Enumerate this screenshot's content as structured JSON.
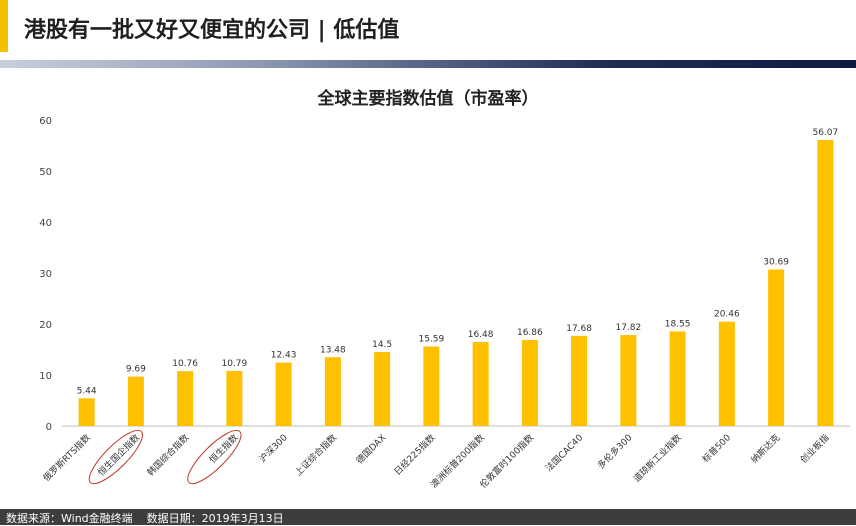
{
  "header": {
    "title": "港股有一批又好又便宜的公司 | 低估值",
    "accent_color": "#f5c000"
  },
  "footer": {
    "text": "数据来源：Wind金融终端    数据日期：2019年3月13日"
  },
  "chart_data": {
    "type": "bar",
    "title": "全球主要指数估值（市盈率）",
    "xlabel": "",
    "ylabel": "",
    "ylim": [
      0,
      60
    ],
    "yticks": [
      0,
      10,
      20,
      30,
      40,
      50,
      60
    ],
    "grid": false,
    "bar_color": "#ffc000",
    "highlight_color": "#c0392b",
    "categories": [
      "俄罗斯RTS指数",
      "恒生国企指数",
      "韩国综合指数",
      "恒生指数",
      "沪深300",
      "上证综合指数",
      "德国DAX",
      "日经225指数",
      "澳洲标普200指数",
      "伦敦富时100指数",
      "法国CAC40",
      "多伦多300",
      "道琼斯工业指数",
      "标普500",
      "纳斯达克",
      "创业板指"
    ],
    "values": [
      5.44,
      9.69,
      10.76,
      10.79,
      12.43,
      13.48,
      14.5,
      15.59,
      16.48,
      16.86,
      17.68,
      17.82,
      18.55,
      20.46,
      30.69,
      56.07
    ],
    "value_labels": [
      "5.44",
      "9.69",
      "10.76",
      "10.79",
      "12.43",
      "13.48",
      "14.5",
      "15.59",
      "16.48",
      "16.86",
      "17.68",
      "17.82",
      "18.55",
      "20.46",
      "30.69",
      "56.07"
    ],
    "highlighted": [
      "恒生国企指数",
      "恒生指数"
    ]
  }
}
